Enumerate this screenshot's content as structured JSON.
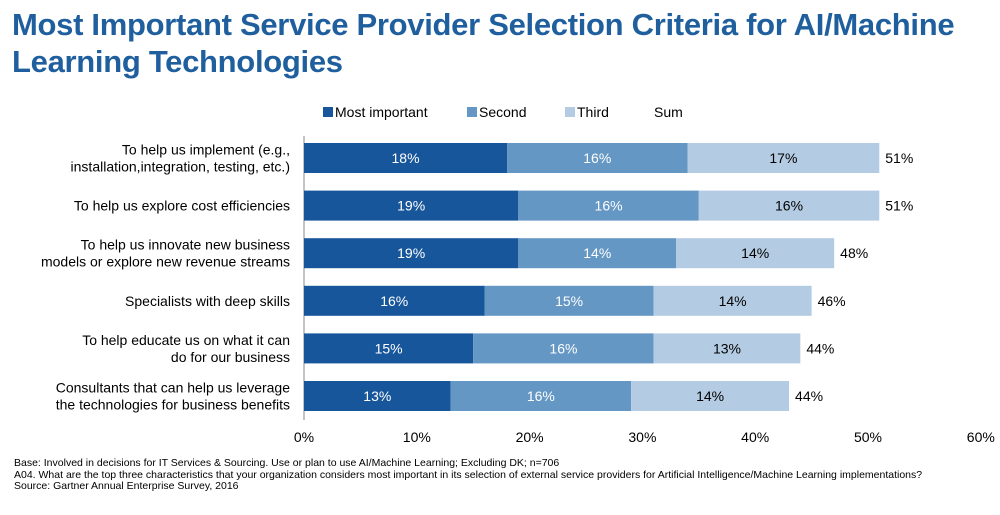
{
  "title": "Most Important Service Provider Selection Criteria for AI/Machine Learning Technologies",
  "colors": {
    "most": "#17569b",
    "second": "#6497c4",
    "third": "#b4cce3",
    "title": "#1f5f9e"
  },
  "chart_data": {
    "type": "bar",
    "orientation": "horizontal",
    "stacked": true,
    "categories": [
      "To help us implement (e.g.,\ninstallation,integration, testing, etc.)",
      "To help us explore cost efficiencies",
      "To help us innovate new business\nmodels or explore new revenue streams",
      "Specialists with deep skills",
      "To help educate us on what it can\ndo for our business",
      "Consultants that can help us leverage\nthe technologies for business benefits"
    ],
    "series": [
      {
        "name": "Most important",
        "values": [
          18,
          19,
          19,
          16,
          15,
          13
        ],
        "labels": [
          "18%",
          "19%",
          "19%",
          "16%",
          "15%",
          "13%"
        ]
      },
      {
        "name": "Second",
        "values": [
          16,
          16,
          14,
          15,
          16,
          16
        ],
        "labels": [
          "16%",
          "16%",
          "14%",
          "15%",
          "16%",
          "16%"
        ]
      },
      {
        "name": "Third",
        "values": [
          17,
          16,
          14,
          14,
          13,
          14
        ],
        "labels": [
          "17%",
          "16%",
          "14%",
          "14%",
          "13%",
          "14%"
        ]
      }
    ],
    "sum": {
      "name": "Sum",
      "labels": [
        "51%",
        "51%",
        "48%",
        "46%",
        "44%",
        "44%"
      ]
    },
    "xlim": [
      0,
      60
    ],
    "xticks": [
      "0%",
      "10%",
      "20%",
      "30%",
      "40%",
      "50%",
      "60%"
    ],
    "legend_position": "top"
  },
  "footnotes": {
    "base": "Base: Involved in decisions for IT Services & Sourcing. Use or plan to use AI/Machine Learning; Excluding DK; n=706",
    "question": "A04. What are the top three characteristics that your organization considers most important in its selection of external service providers for Artificial Intelligence/Machine Learning implementations?",
    "source": "Source: Gartner Annual Enterprise Survey, 2016"
  }
}
